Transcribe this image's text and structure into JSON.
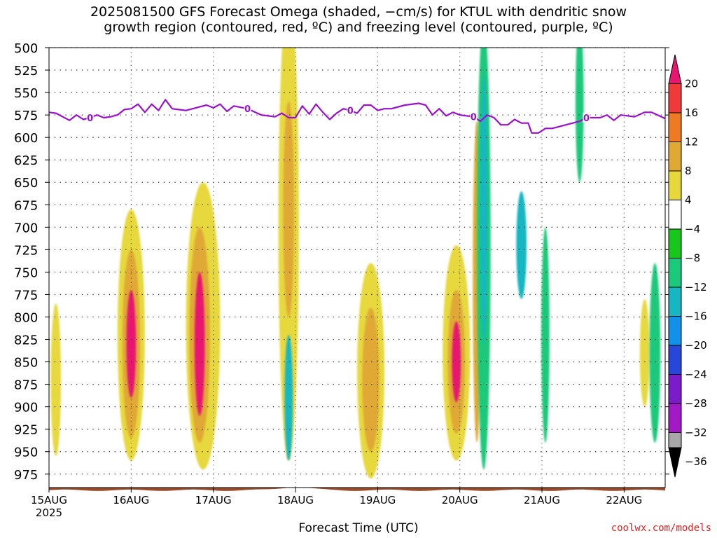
{
  "title": {
    "line1": "2025081500 GFS Forecast Omega (shaded, −cm/s) for KTUL with dendritic snow",
    "line2": "growth region (contoured, red, ºC) and freezing level (contoured, purple, ºC)"
  },
  "credit": "coolwx.com/models",
  "chart_data": {
    "type": "heatmap",
    "xlabel": "Forecast Time (UTC)",
    "ylabel": "",
    "y_ticks": [
      500,
      525,
      550,
      575,
      600,
      625,
      650,
      675,
      700,
      725,
      750,
      775,
      800,
      825,
      850,
      875,
      900,
      925,
      950,
      975
    ],
    "ylim": [
      500,
      990
    ],
    "x_ticks": [
      "15AUG",
      "16AUG",
      "17AUG",
      "18AUG",
      "19AUG",
      "20AUG",
      "21AUG",
      "22AUG"
    ],
    "x_sublabel": "2025",
    "xlim_hours": [
      0,
      180
    ],
    "grid": true,
    "colorbar": {
      "labels": [
        "20",
        "16",
        "12",
        "8",
        "4",
        "−4",
        "−8",
        "−12",
        "−16",
        "−20",
        "−24",
        "−28",
        "−32",
        "−36"
      ],
      "colors": [
        "#e8166f",
        "#f03a3a",
        "#ee7a26",
        "#e0a934",
        "#e6d83c",
        "#ffffff",
        "#19c61b",
        "#1cc97a",
        "#16b6c3",
        "#1390e8",
        "#2847d8",
        "#7a1cc9",
        "#a21ac6",
        "#a8a8a8"
      ]
    },
    "freezing_level_label": "0",
    "freezing_level": [
      [
        0,
        572
      ],
      [
        2,
        573
      ],
      [
        4,
        577
      ],
      [
        6,
        581
      ],
      [
        8,
        575
      ],
      [
        10,
        580
      ],
      [
        12,
        578
      ],
      [
        14,
        575
      ],
      [
        16,
        578
      ],
      [
        18,
        577
      ],
      [
        20,
        575
      ],
      [
        22,
        569
      ],
      [
        24,
        568
      ],
      [
        26,
        563
      ],
      [
        28,
        572
      ],
      [
        30,
        563
      ],
      [
        32,
        570
      ],
      [
        34,
        558
      ],
      [
        36,
        568
      ],
      [
        40,
        570
      ],
      [
        44,
        566
      ],
      [
        46,
        564
      ],
      [
        48,
        567
      ],
      [
        50,
        563
      ],
      [
        52,
        571
      ],
      [
        54,
        565
      ],
      [
        58,
        568
      ],
      [
        62,
        575
      ],
      [
        66,
        577
      ],
      [
        68,
        573
      ],
      [
        70,
        578
      ],
      [
        72,
        578
      ],
      [
        74,
        565
      ],
      [
        76,
        574
      ],
      [
        78,
        563
      ],
      [
        80,
        572
      ],
      [
        82,
        580
      ],
      [
        84,
        573
      ],
      [
        86,
        568
      ],
      [
        88,
        570
      ],
      [
        90,
        573
      ],
      [
        92,
        564
      ],
      [
        94,
        564
      ],
      [
        96,
        570
      ],
      [
        98,
        568
      ],
      [
        100,
        568
      ],
      [
        104,
        564
      ],
      [
        108,
        562
      ],
      [
        110,
        564
      ],
      [
        112,
        575
      ],
      [
        114,
        568
      ],
      [
        116,
        576
      ],
      [
        118,
        572
      ],
      [
        120,
        575
      ],
      [
        124,
        577
      ],
      [
        126,
        582
      ],
      [
        128,
        575
      ],
      [
        130,
        578
      ],
      [
        132,
        586
      ],
      [
        134,
        586
      ],
      [
        136,
        580
      ],
      [
        138,
        584
      ],
      [
        140,
        584
      ],
      [
        141,
        595
      ],
      [
        143,
        595
      ],
      [
        145,
        590
      ],
      [
        147,
        590
      ],
      [
        149,
        588
      ],
      [
        151,
        586
      ],
      [
        153,
        584
      ],
      [
        155,
        582
      ],
      [
        157,
        578
      ],
      [
        161,
        578
      ],
      [
        163,
        575
      ],
      [
        165,
        581
      ],
      [
        167,
        575
      ],
      [
        171,
        577
      ],
      [
        174,
        572
      ],
      [
        176,
        572
      ],
      [
        180,
        579
      ]
    ],
    "omega_regions": [
      {
        "x": 2,
        "y": 870,
        "rx": 1.5,
        "ry": 85,
        "value": 6
      },
      {
        "x": 24,
        "y": 820,
        "rx": 4,
        "ry": 140,
        "value": 4
      },
      {
        "x": 24,
        "y": 830,
        "rx": 2.6,
        "ry": 105,
        "value": 10
      },
      {
        "x": 24,
        "y": 830,
        "rx": 1.4,
        "ry": 60,
        "value": 20
      },
      {
        "x": 45,
        "y": 810,
        "rx": 5,
        "ry": 160,
        "value": 4
      },
      {
        "x": 44,
        "y": 820,
        "rx": 3,
        "ry": 120,
        "value": 10
      },
      {
        "x": 44,
        "y": 830,
        "rx": 1.5,
        "ry": 80,
        "value": 20
      },
      {
        "x": 70,
        "y": 700,
        "rx": 3,
        "ry": 260,
        "value": 4
      },
      {
        "x": 70,
        "y": 680,
        "rx": 1.6,
        "ry": 120,
        "value": 10
      },
      {
        "x": 70,
        "y": 890,
        "rx": 1.2,
        "ry": 70,
        "value": -12
      },
      {
        "x": 94,
        "y": 860,
        "rx": 4,
        "ry": 120,
        "value": 4
      },
      {
        "x": 94,
        "y": 870,
        "rx": 2.5,
        "ry": 80,
        "value": 10
      },
      {
        "x": 119,
        "y": 840,
        "rx": 4,
        "ry": 120,
        "value": 4
      },
      {
        "x": 119,
        "y": 850,
        "rx": 2.5,
        "ry": 80,
        "value": 10
      },
      {
        "x": 119,
        "y": 850,
        "rx": 1.3,
        "ry": 45,
        "value": 20
      },
      {
        "x": 125,
        "y": 760,
        "rx": 1.2,
        "ry": 180,
        "value": 10
      },
      {
        "x": 127,
        "y": 720,
        "rx": 2,
        "ry": 250,
        "value": -8
      },
      {
        "x": 127,
        "y": 680,
        "rx": 1,
        "ry": 150,
        "value": -12
      },
      {
        "x": 138,
        "y": 720,
        "rx": 1.5,
        "ry": 60,
        "value": -12
      },
      {
        "x": 145,
        "y": 820,
        "rx": 1.2,
        "ry": 120,
        "value": -8
      },
      {
        "x": 155,
        "y": 560,
        "rx": 1.2,
        "ry": 90,
        "value": -8
      },
      {
        "x": 174,
        "y": 840,
        "rx": 1.4,
        "ry": 60,
        "value": 4
      },
      {
        "x": 177,
        "y": 840,
        "rx": 1.6,
        "ry": 100,
        "value": -8
      }
    ]
  }
}
